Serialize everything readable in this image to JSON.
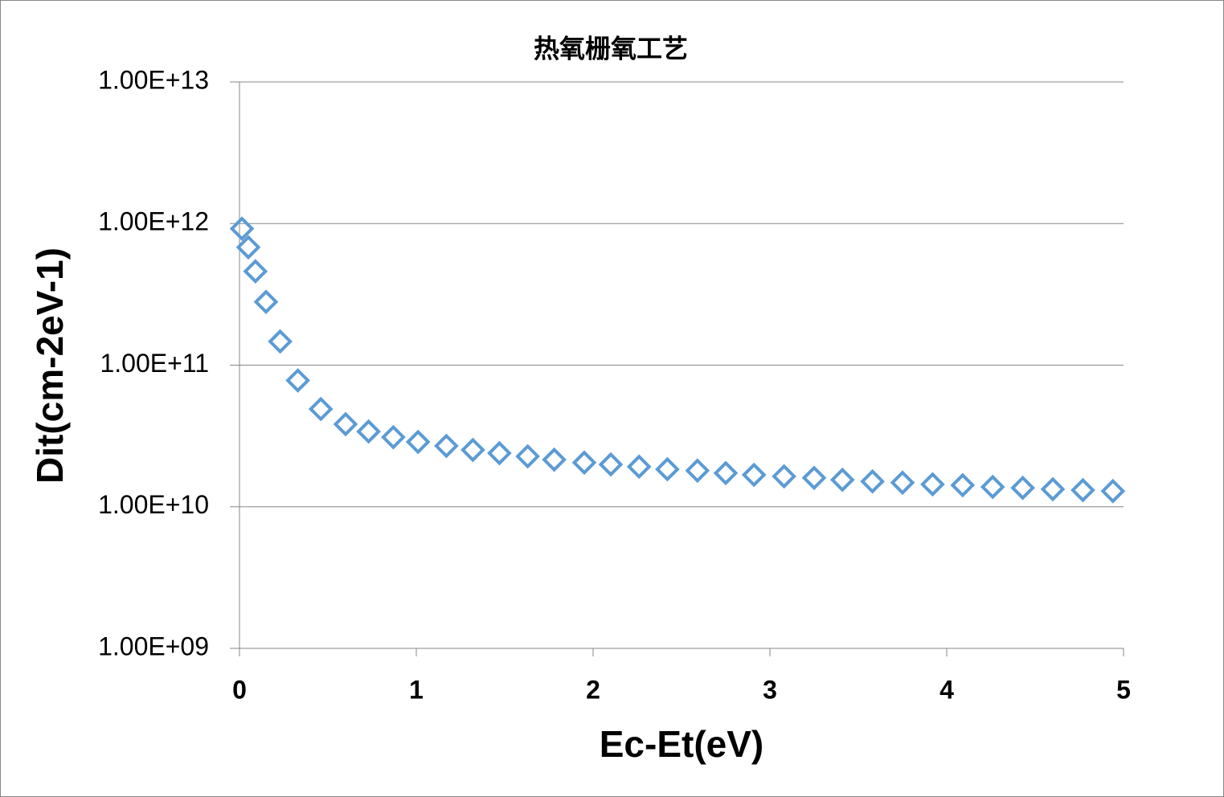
{
  "chart_data": {
    "type": "scatter",
    "title": "热氧栅氧工艺",
    "x_label": "Ec-Et(eV)",
    "y_label": "Dit(cm-2eV-1)",
    "log_y": true,
    "grid": true,
    "series": [
      {
        "color": "#5b9bd5",
        "marker": "diamond",
        "x": [
          0.014,
          0.05,
          0.09,
          0.15,
          0.23,
          0.33,
          0.46,
          0.6,
          0.73,
          0.87,
          1.01,
          1.17,
          1.32,
          1.47,
          1.63,
          1.78,
          1.95,
          2.1,
          2.26,
          2.42,
          2.59,
          2.75,
          2.91,
          3.08,
          3.25,
          3.41,
          3.58,
          3.75,
          3.92,
          4.09,
          4.26,
          4.43,
          4.6,
          4.77,
          4.94
        ],
        "values": [
          920000000000.0,
          680000000000.0,
          460000000000.0,
          280000000000.0,
          147000000000.0,
          78000000000.0,
          49000000000.0,
          38300000000.0,
          34000000000.0,
          31000000000.0,
          28700000000.0,
          26900000000.0,
          25200000000.0,
          23900000000.0,
          22700000000.0,
          21500000000.0,
          20500000000.0,
          19900000000.0,
          19200000000.0,
          18400000000.0,
          18000000000.0,
          17300000000.0,
          16800000000.0,
          16400000000.0,
          16000000000.0,
          15500000000.0,
          15100000000.0,
          14800000000.0,
          14400000000.0,
          14200000000.0,
          13800000000.0,
          13600000000.0,
          13300000000.0,
          13100000000.0,
          12900000000.0
        ]
      }
    ],
    "xlim": [
      0,
      5
    ],
    "xticks": [
      0,
      1,
      2,
      3,
      4,
      5
    ],
    "ylim": [
      1000000000.0,
      10000000000000.0
    ],
    "yticks": [
      {
        "value": 1000000000.0,
        "label": "1.00E+09"
      },
      {
        "value": 10000000000.0,
        "label": "1.00E+10"
      },
      {
        "value": 100000000000.0,
        "label": "1.00E+11"
      },
      {
        "value": 1000000000000.0,
        "label": "1.00E+12"
      },
      {
        "value": 10000000000000.0,
        "label": "1.00E+13"
      }
    ]
  }
}
